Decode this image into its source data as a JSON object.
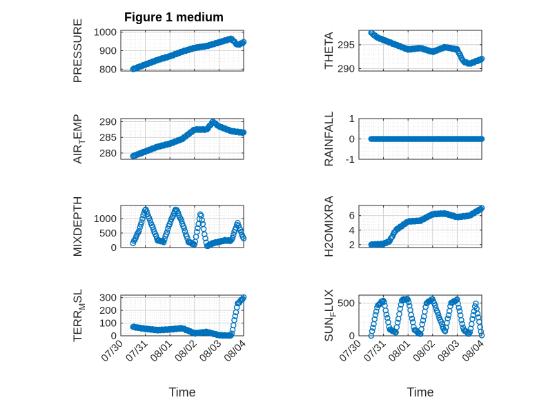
{
  "figure": {
    "title": "Figure 1 medium",
    "marker_color": "#0072bd",
    "grid": "dotted",
    "box": "on"
  },
  "x_ticks": [
    "07/30",
    "07/31",
    "08/01",
    "08/02",
    "08/03",
    "08/04"
  ],
  "chart_data": [
    {
      "type": "scatter",
      "panel": "top-left",
      "ylabel": "PRESSURE",
      "sub": "",
      "ylabel_tail": "",
      "title": "Figure 1 medium",
      "xlabel": "",
      "ylim": [
        790,
        1010
      ],
      "yticks": [
        "800",
        "900",
        "1000"
      ],
      "xlim": [
        "07/30",
        "08/04"
      ],
      "x": [
        "07/30 12:00",
        "07/31 00:00",
        "07/31 12:00",
        "08/01 00:00",
        "08/01 12:00",
        "08/02 00:00",
        "08/02 12:00",
        "08/03 00:00",
        "08/03 06:00",
        "08/03 12:00",
        "08/03 18:00",
        "08/04 00:00"
      ],
      "y": [
        800,
        825,
        850,
        870,
        895,
        915,
        925,
        945,
        955,
        965,
        930,
        945
      ]
    },
    {
      "type": "scatter",
      "panel": "top-right",
      "ylabel": "THETA",
      "sub": "",
      "ylabel_tail": "",
      "xlabel": "",
      "ylim": [
        289.5,
        298
      ],
      "yticks": [
        "290",
        "295"
      ],
      "xlim": [
        "07/30",
        "08/04"
      ],
      "x": [
        "07/30 12:00",
        "07/30 18:00",
        "07/31 00:00",
        "07/31 12:00",
        "08/01 00:00",
        "08/01 12:00",
        "08/02 00:00",
        "08/02 12:00",
        "08/03 00:00",
        "08/03 06:00",
        "08/03 12:00",
        "08/04 00:00"
      ],
      "y": [
        297.5,
        296.5,
        296,
        295,
        294,
        294.3,
        293.5,
        294.5,
        294,
        291.5,
        291,
        292
      ]
    },
    {
      "type": "scatter",
      "panel": "row2-left",
      "ylabel": "AIR",
      "sub": "T",
      "ylabel_tail": "EMP",
      "xlabel": "",
      "ylim": [
        278,
        291
      ],
      "yticks": [
        "280",
        "285",
        "290"
      ],
      "xlim": [
        "07/30",
        "08/04"
      ],
      "x": [
        "07/30 12:00",
        "07/31 00:00",
        "07/31 12:00",
        "08/01 00:00",
        "08/01 12:00",
        "08/02 00:00",
        "08/02 12:00",
        "08/02 18:00",
        "08/03 00:00",
        "08/03 12:00",
        "08/04 00:00"
      ],
      "y": [
        279,
        280.5,
        282,
        283,
        284.5,
        287.5,
        287.5,
        290,
        288.5,
        287,
        286.5
      ]
    },
    {
      "type": "scatter",
      "panel": "row2-right",
      "ylabel": "RAINFALL",
      "sub": "",
      "ylabel_tail": "",
      "xlabel": "",
      "ylim": [
        -1,
        1
      ],
      "yticks": [
        "-1",
        "0",
        "1"
      ],
      "xlim": [
        "07/30",
        "08/04"
      ],
      "x": [
        "07/30 12:00",
        "08/04 00:00"
      ],
      "y": [
        0,
        0
      ],
      "constant": true
    },
    {
      "type": "scatter",
      "panel": "row3-left",
      "ylabel": "MIXDEPTH",
      "sub": "",
      "ylabel_tail": "",
      "xlabel": "",
      "ylim": [
        0,
        1450
      ],
      "yticks": [
        "0",
        "500",
        "1000"
      ],
      "xlim": [
        "07/30",
        "08/04"
      ],
      "x": [
        "07/30 12:00",
        "07/30 18:00",
        "07/31 00:00",
        "07/31 06:00",
        "07/31 12:00",
        "07/31 18:00",
        "08/01 00:00",
        "08/01 06:00",
        "08/01 12:00",
        "08/01 18:00",
        "08/02 00:00",
        "08/02 06:00",
        "08/02 12:00",
        "08/02 18:00",
        "08/03 00:00",
        "08/03 06:00",
        "08/03 12:00",
        "08/03 18:00",
        "08/04 00:00"
      ],
      "y": [
        150,
        600,
        1350,
        800,
        250,
        200,
        850,
        1350,
        850,
        200,
        100,
        1200,
        50,
        150,
        200,
        250,
        230,
        850,
        300
      ]
    },
    {
      "type": "scatter",
      "panel": "row3-right",
      "ylabel": "H2OMIXRA",
      "sub": "",
      "ylabel_tail": "",
      "xlabel": "",
      "ylim": [
        1.6,
        7.4
      ],
      "yticks": [
        "2",
        "4",
        "6"
      ],
      "xlim": [
        "07/30",
        "08/04"
      ],
      "x": [
        "07/30 12:00",
        "07/31 00:00",
        "07/31 06:00",
        "07/31 12:00",
        "08/01 00:00",
        "08/01 12:00",
        "08/02 00:00",
        "08/02 12:00",
        "08/03 00:00",
        "08/03 12:00",
        "08/04 00:00"
      ],
      "y": [
        2,
        2.1,
        2.5,
        4,
        5.2,
        5.3,
        6.2,
        6.3,
        5.8,
        6.0,
        7.0
      ]
    },
    {
      "type": "scatter",
      "panel": "bottom-left",
      "ylabel": "TERR",
      "sub": "M",
      "ylabel_tail": "SL",
      "xlabel": "Time",
      "ylim": [
        0,
        320
      ],
      "yticks": [
        "0",
        "100",
        "200",
        "300"
      ],
      "xlim": [
        "07/30",
        "08/04"
      ],
      "x": [
        "07/30 12:00",
        "07/31 00:00",
        "07/31 12:00",
        "08/01 00:00",
        "08/01 12:00",
        "08/02 00:00",
        "08/02 12:00",
        "08/03 00:00",
        "08/03 12:00",
        "08/03 18:00",
        "08/04 00:00"
      ],
      "y": [
        70,
        55,
        45,
        50,
        60,
        20,
        30,
        5,
        0,
        250,
        300
      ]
    },
    {
      "type": "scatter",
      "panel": "bottom-right",
      "ylabel": "SUN",
      "sub": "F",
      "ylabel_tail": "LUX",
      "xlabel": "Time",
      "ylim": [
        0,
        620
      ],
      "yticks": [
        "0",
        "500"
      ],
      "xlim": [
        "07/30",
        "08/04"
      ],
      "x": [
        "07/30 12:00",
        "07/30 18:00",
        "07/31 00:00",
        "07/31 06:00",
        "07/31 12:00",
        "07/31 18:00",
        "08/01 00:00",
        "08/01 06:00",
        "08/01 12:00",
        "08/01 18:00",
        "08/02 00:00",
        "08/02 06:00",
        "08/02 12:00",
        "08/02 18:00",
        "08/03 00:00",
        "08/03 06:00",
        "08/03 12:00",
        "08/03 18:00",
        "08/04 00:00"
      ],
      "y": [
        0,
        450,
        550,
        100,
        50,
        550,
        560,
        100,
        20,
        500,
        560,
        300,
        50,
        500,
        550,
        100,
        20,
        500,
        0
      ]
    }
  ]
}
